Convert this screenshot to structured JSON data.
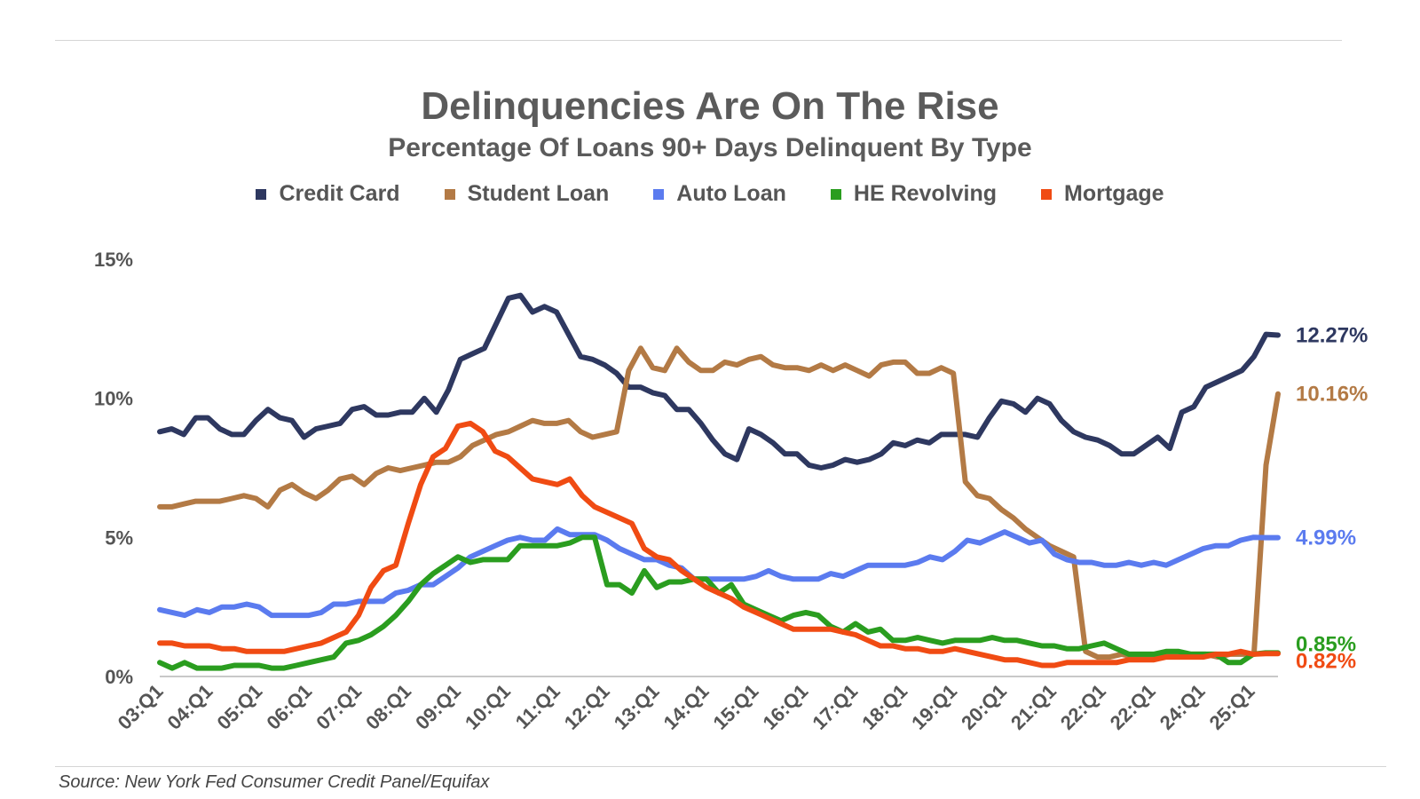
{
  "title": "Delinquencies Are On The Rise",
  "subtitle": "Percentage Of Loans 90+ Days Delinquent By Type",
  "source": "Source: New York Fed Consumer Credit Panel/Equifax",
  "chart_data": {
    "type": "line",
    "title": "Delinquencies Are On The Rise",
    "subtitle": "Percentage Of Loans 90+ Days Delinquent By Type",
    "xlabel": "",
    "ylabel": "",
    "ylim": [
      0,
      15
    ],
    "y_ticks": [
      "0%",
      "5%",
      "10%",
      "15%"
    ],
    "y_tick_values": [
      0,
      5,
      10,
      15
    ],
    "x_tick_labels": [
      "03:Q1",
      "04:Q1",
      "05:Q1",
      "06:Q1",
      "07:Q1",
      "08:Q1",
      "09:Q1",
      "10:Q1",
      "11:Q1",
      "12:Q1",
      "13:Q1",
      "14:Q1",
      "15:Q1",
      "16:Q1",
      "17:Q1",
      "18:Q1",
      "19:Q1",
      "20:Q1",
      "21:Q1",
      "22:Q1",
      "22:Q1",
      "24:Q1",
      "25:Q1"
    ],
    "grid": false,
    "legend_position": "top-center",
    "series": [
      {
        "name": "Credit Card",
        "color": "#2e3860",
        "end_label": "12.27%",
        "values": [
          8.8,
          8.9,
          8.7,
          9.3,
          9.3,
          8.9,
          8.7,
          8.7,
          9.2,
          9.6,
          9.3,
          9.2,
          8.6,
          8.9,
          9.0,
          9.1,
          9.6,
          9.7,
          9.4,
          9.4,
          9.5,
          9.5,
          10.0,
          9.5,
          10.3,
          11.4,
          11.6,
          11.8,
          12.7,
          13.6,
          13.7,
          13.1,
          13.3,
          13.1,
          12.3,
          11.5,
          11.4,
          11.2,
          10.9,
          10.4,
          10.4,
          10.2,
          10.1,
          9.6,
          9.6,
          9.1,
          8.5,
          8.0,
          7.8,
          8.9,
          8.7,
          8.4,
          8.0,
          8.0,
          7.6,
          7.5,
          7.6,
          7.8,
          7.7,
          7.8,
          8.0,
          8.4,
          8.3,
          8.5,
          8.4,
          8.7,
          8.7,
          8.7,
          8.6,
          9.3,
          9.9,
          9.8,
          9.5,
          10.0,
          9.8,
          9.2,
          8.8,
          8.6,
          8.5,
          8.3,
          8.0,
          8.0,
          8.3,
          8.6,
          8.2,
          9.5,
          9.7,
          10.4,
          10.6,
          10.8,
          11.0,
          11.5,
          12.3,
          12.27
        ]
      },
      {
        "name": "Student Loan",
        "color": "#b37a45",
        "end_label": "10.16%",
        "values": [
          6.1,
          6.1,
          6.2,
          6.3,
          6.3,
          6.3,
          6.4,
          6.5,
          6.4,
          6.1,
          6.7,
          6.9,
          6.6,
          6.4,
          6.7,
          7.1,
          7.2,
          6.9,
          7.3,
          7.5,
          7.4,
          7.5,
          7.6,
          7.7,
          7.7,
          7.9,
          8.3,
          8.5,
          8.7,
          8.8,
          9.0,
          9.2,
          9.1,
          9.1,
          9.2,
          8.8,
          8.6,
          8.7,
          8.8,
          11.0,
          11.8,
          11.1,
          11.0,
          11.8,
          11.3,
          11.0,
          11.0,
          11.3,
          11.2,
          11.4,
          11.5,
          11.2,
          11.1,
          11.1,
          11.0,
          11.2,
          11.0,
          11.2,
          11.0,
          10.8,
          11.2,
          11.3,
          11.3,
          10.9,
          10.9,
          11.1,
          10.9,
          7.0,
          6.5,
          6.4,
          6.0,
          5.7,
          5.3,
          5.0,
          4.7,
          4.5,
          4.3,
          0.9,
          0.7,
          0.7,
          0.8,
          0.7,
          0.7,
          0.8,
          0.8,
          0.8,
          0.8,
          0.8,
          0.7,
          0.8,
          0.8,
          0.8,
          7.6,
          10.16
        ]
      },
      {
        "name": "Auto Loan",
        "color": "#5b7bef",
        "end_label": "4.99%",
        "values": [
          2.4,
          2.3,
          2.2,
          2.4,
          2.3,
          2.5,
          2.5,
          2.6,
          2.5,
          2.2,
          2.2,
          2.2,
          2.2,
          2.3,
          2.6,
          2.6,
          2.7,
          2.7,
          2.7,
          3.0,
          3.1,
          3.3,
          3.3,
          3.6,
          3.9,
          4.3,
          4.5,
          4.7,
          4.9,
          5.0,
          4.9,
          4.9,
          5.3,
          5.1,
          5.1,
          5.1,
          4.9,
          4.6,
          4.4,
          4.2,
          4.2,
          4.0,
          3.9,
          3.5,
          3.5,
          3.5,
          3.5,
          3.5,
          3.6,
          3.8,
          3.6,
          3.5,
          3.5,
          3.5,
          3.7,
          3.6,
          3.8,
          4.0,
          4.0,
          4.0,
          4.0,
          4.1,
          4.3,
          4.2,
          4.5,
          4.9,
          4.8,
          5.0,
          5.2,
          5.0,
          4.8,
          4.9,
          4.4,
          4.2,
          4.1,
          4.1,
          4.0,
          4.0,
          4.1,
          4.0,
          4.1,
          4.0,
          4.2,
          4.4,
          4.6,
          4.7,
          4.7,
          4.9,
          5.0,
          4.99,
          4.99
        ]
      },
      {
        "name": "HE Revolving",
        "color": "#2a9d1f",
        "end_label": "0.85%",
        "values": [
          0.5,
          0.3,
          0.5,
          0.3,
          0.3,
          0.3,
          0.4,
          0.4,
          0.4,
          0.3,
          0.3,
          0.4,
          0.5,
          0.6,
          0.7,
          1.2,
          1.3,
          1.5,
          1.8,
          2.2,
          2.7,
          3.3,
          3.7,
          4.0,
          4.3,
          4.1,
          4.2,
          4.2,
          4.2,
          4.7,
          4.7,
          4.7,
          4.7,
          4.8,
          5.0,
          5.0,
          3.3,
          3.3,
          3.0,
          3.8,
          3.2,
          3.4,
          3.4,
          3.5,
          3.5,
          3.0,
          3.3,
          2.6,
          2.4,
          2.2,
          2.0,
          2.2,
          2.3,
          2.2,
          1.8,
          1.6,
          1.9,
          1.6,
          1.7,
          1.3,
          1.3,
          1.4,
          1.3,
          1.2,
          1.3,
          1.3,
          1.3,
          1.4,
          1.3,
          1.3,
          1.2,
          1.1,
          1.1,
          1.0,
          1.0,
          1.1,
          1.2,
          1.0,
          0.8,
          0.8,
          0.8,
          0.9,
          0.9,
          0.8,
          0.8,
          0.8,
          0.5,
          0.5,
          0.8,
          0.85,
          0.85
        ]
      },
      {
        "name": "Mortgage",
        "color": "#f04b13",
        "end_label": "0.82%",
        "values": [
          1.2,
          1.2,
          1.1,
          1.1,
          1.1,
          1.0,
          1.0,
          0.9,
          0.9,
          0.9,
          0.9,
          1.0,
          1.1,
          1.2,
          1.4,
          1.6,
          2.2,
          3.2,
          3.8,
          4.0,
          5.5,
          6.9,
          7.9,
          8.2,
          9.0,
          9.1,
          8.8,
          8.1,
          7.9,
          7.5,
          7.1,
          7.0,
          6.9,
          7.1,
          6.5,
          6.1,
          5.9,
          5.7,
          5.5,
          4.6,
          4.3,
          4.2,
          3.8,
          3.5,
          3.2,
          3.0,
          2.8,
          2.5,
          2.3,
          2.1,
          1.9,
          1.7,
          1.7,
          1.7,
          1.7,
          1.6,
          1.5,
          1.3,
          1.1,
          1.1,
          1.0,
          1.0,
          0.9,
          0.9,
          1.0,
          0.9,
          0.8,
          0.7,
          0.6,
          0.6,
          0.5,
          0.4,
          0.4,
          0.5,
          0.5,
          0.5,
          0.5,
          0.5,
          0.6,
          0.6,
          0.6,
          0.7,
          0.7,
          0.7,
          0.7,
          0.8,
          0.8,
          0.9,
          0.8,
          0.82,
          0.82
        ]
      }
    ]
  }
}
